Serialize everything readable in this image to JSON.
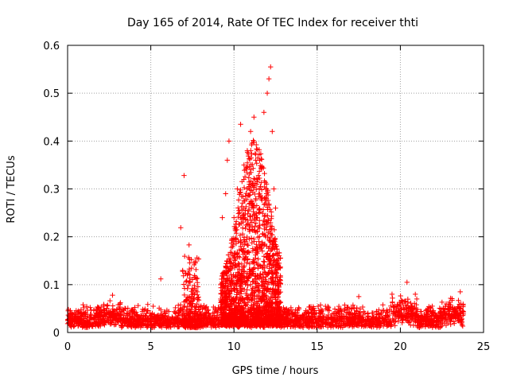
{
  "chart_data": {
    "type": "scatter",
    "title": "Day 165 of 2014, Rate Of TEC Index for receiver thti",
    "xlabel": "GPS time / hours",
    "ylabel": "ROTI / TECUs",
    "xlim": [
      0,
      25
    ],
    "ylim": [
      0,
      0.6
    ],
    "xticks": [
      0,
      5,
      10,
      15,
      20,
      25
    ],
    "yticks": [
      0,
      0.1,
      0.2,
      0.3,
      0.4,
      0.5,
      0.6
    ],
    "grid": true,
    "marker": "+",
    "color": "#ff0000",
    "x_range_data": [
      0,
      23.8
    ],
    "baseline_level": 0.02,
    "series": [
      {
        "name": "ROTI",
        "points": [
          [
            2.7,
            0.078
          ],
          [
            5.6,
            0.112
          ],
          [
            6.8,
            0.219
          ],
          [
            7.0,
            0.328
          ],
          [
            7.3,
            0.183
          ],
          [
            7.2,
            0.12
          ],
          [
            7.8,
            0.113
          ],
          [
            9.3,
            0.24
          ],
          [
            9.5,
            0.29
          ],
          [
            9.6,
            0.36
          ],
          [
            9.7,
            0.4
          ],
          [
            10.0,
            0.24
          ],
          [
            10.2,
            0.3
          ],
          [
            10.4,
            0.435
          ],
          [
            10.6,
            0.35
          ],
          [
            10.8,
            0.38
          ],
          [
            11.0,
            0.42
          ],
          [
            11.2,
            0.45
          ],
          [
            11.3,
            0.36
          ],
          [
            11.5,
            0.25
          ],
          [
            11.8,
            0.46
          ],
          [
            12.0,
            0.5
          ],
          [
            12.1,
            0.53
          ],
          [
            12.2,
            0.555
          ],
          [
            12.3,
            0.42
          ],
          [
            12.4,
            0.3
          ],
          [
            12.5,
            0.26
          ],
          [
            17.5,
            0.075
          ],
          [
            19.5,
            0.08
          ],
          [
            20.4,
            0.105
          ],
          [
            23.6,
            0.085
          ]
        ]
      }
    ]
  }
}
